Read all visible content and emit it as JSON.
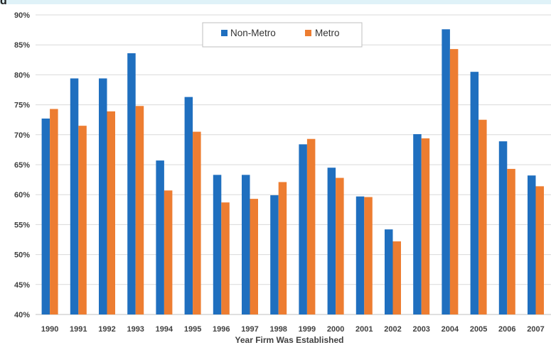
{
  "title_fragment": "g",
  "chart_data": {
    "type": "bar",
    "title": "",
    "xlabel": "Year Firm Was Established",
    "ylabel": "",
    "ylim": [
      0.4,
      0.9
    ],
    "yticks": [
      "40%",
      "45%",
      "50%",
      "55%",
      "60%",
      "65%",
      "70%",
      "75%",
      "80%",
      "85%",
      "90%"
    ],
    "grid": true,
    "legend_position": "top-center",
    "categories": [
      "1990",
      "1991",
      "1992",
      "1993",
      "1994",
      "1995",
      "1996",
      "1997",
      "1998",
      "1999",
      "2000",
      "2001",
      "2002",
      "2003",
      "2004",
      "2005",
      "2006",
      "2007"
    ],
    "series": [
      {
        "name": "Non-Metro",
        "color": "#1f6fbf",
        "values": [
          0.727,
          0.794,
          0.794,
          0.836,
          0.657,
          0.763,
          0.633,
          0.633,
          0.599,
          0.684,
          0.645,
          0.597,
          0.542,
          0.701,
          0.876,
          0.805,
          0.689,
          0.632
        ]
      },
      {
        "name": "Metro",
        "color": "#ed7d31",
        "values": [
          0.743,
          0.715,
          0.739,
          0.748,
          0.607,
          0.705,
          0.587,
          0.593,
          0.621,
          0.693,
          0.628,
          0.596,
          0.522,
          0.694,
          0.843,
          0.725,
          0.643,
          0.614
        ]
      }
    ]
  }
}
